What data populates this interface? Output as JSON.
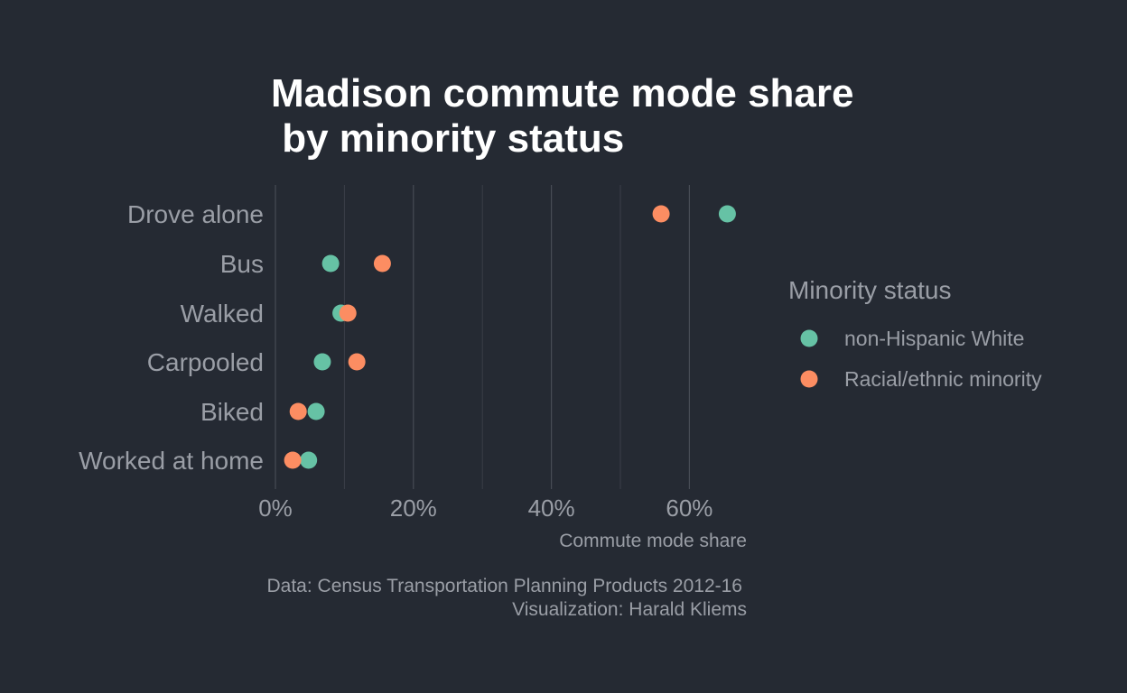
{
  "chart_data": {
    "type": "scatter",
    "title_lines": [
      "Madison commute mode share",
      " by minority status"
    ],
    "xlabel": "Commute mode share",
    "ylabel": "",
    "xlim": [
      0,
      68
    ],
    "x_ticks": [
      0,
      20,
      40,
      60
    ],
    "x_tick_labels": [
      "0%",
      "20%",
      "40%",
      "60%"
    ],
    "categories": [
      "Drove alone",
      "Bus",
      "Walked",
      "Carpooled",
      "Biked",
      "Worked at home"
    ],
    "legend_title": "Minority status",
    "legend_position": "right",
    "grid": true,
    "series": [
      {
        "name": "non-Hispanic White",
        "color": "#66c2a5",
        "values": [
          65.5,
          8,
          9.5,
          6.8,
          5.9,
          4.8
        ]
      },
      {
        "name": "Racial/ethnic minority",
        "color": "#fc8d62",
        "values": [
          55.9,
          15.5,
          10.5,
          11.8,
          3.3,
          2.5
        ]
      }
    ],
    "caption_lines": [
      "Data: Census Transportation Planning Products 2012-16",
      "Visualization: Harald Kliems"
    ]
  }
}
